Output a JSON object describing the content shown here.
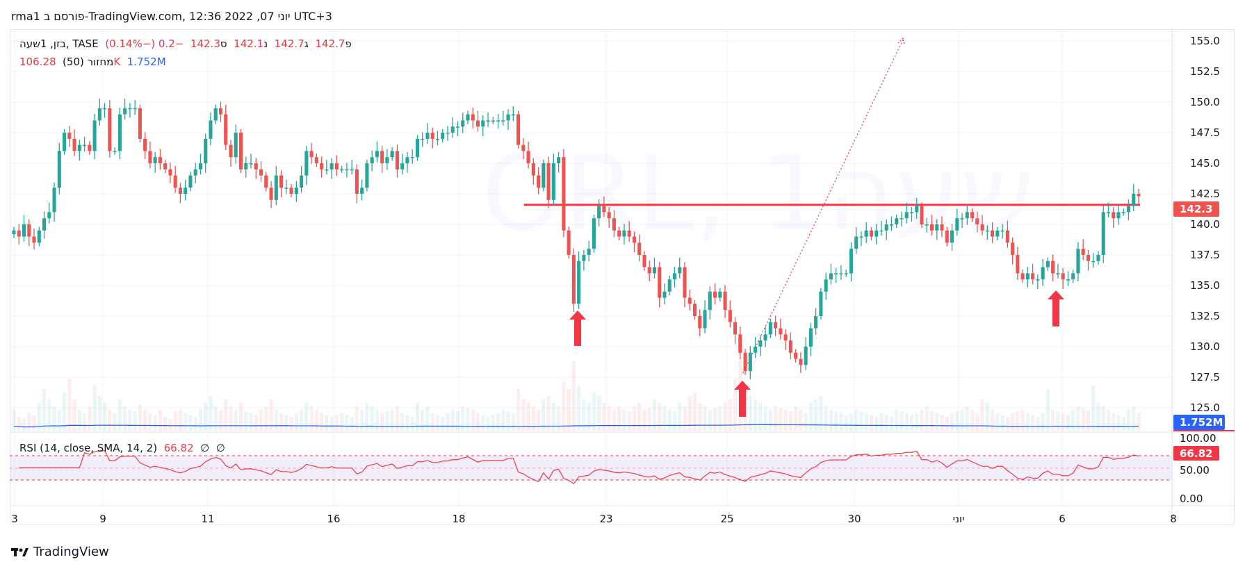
{
  "header": {
    "title": "rma1 פורסם ב-TradingView.com, 12:36 2022 ,07 יוני UTC+3"
  },
  "legend": {
    "symbol": "בזן, 1שעה, TASE",
    "open_label": "פ",
    "open": "142.7",
    "high_label": "ג",
    "high": "142.7",
    "low_label": "נ",
    "low": "142.1",
    "close_label": "ס",
    "close": "142.3",
    "change": "−0.2 (−0.14%)",
    "volume_label": "מחזור (50)",
    "volume": "106.28K",
    "volume_ma": "1.752M"
  },
  "rsi": {
    "label": "RSI (14, close, SMA, 14, 2)",
    "value": "66.82",
    "extra1": "∅",
    "extra2": "∅"
  },
  "watermark": "ORL, 1שעה",
  "logo": {
    "text": "TradingView"
  },
  "colors": {
    "up": "#26a69a",
    "down": "#ef5350",
    "annotation": "#f23645",
    "volume_ma": "#2962ff",
    "rsi": "#f23645"
  },
  "chart_data": {
    "type": "candlestick",
    "y_ticks": [
      "155.0",
      "152.5",
      "150.0",
      "147.5",
      "145.0",
      "142.5",
      "140.0",
      "137.5",
      "135.0",
      "132.5",
      "130.0",
      "127.5",
      "125.0"
    ],
    "y_tick_values": [
      155,
      152.5,
      150,
      147.5,
      145,
      142.5,
      140,
      137.5,
      135,
      132.5,
      130,
      127.5,
      125
    ],
    "ylim": [
      125,
      155
    ],
    "x_ticks": [
      "3",
      "9",
      "11",
      "16",
      "18",
      "23",
      "25",
      "30",
      "יוני",
      "6",
      "8"
    ],
    "last_price_label": "142.3",
    "volume_ma_label": "1.752M",
    "rsi_ticks": [
      "100.00",
      "50.00",
      "0.00"
    ],
    "rsi_value_label": "66.82",
    "resistance_level": 141.6,
    "closes": [
      139.5,
      139,
      140,
      139,
      138.5,
      139.5,
      140.5,
      141,
      143,
      146,
      147.5,
      147,
      146,
      146.5,
      146.5,
      146,
      148.5,
      149.5,
      149.5,
      146,
      146,
      149,
      149.5,
      149.5,
      149.5,
      147,
      146,
      145,
      145.5,
      145,
      144.5,
      144,
      143,
      142.5,
      143,
      144,
      144.5,
      145,
      147,
      148.5,
      149.5,
      149,
      146.5,
      145.5,
      147.5,
      144.5,
      145,
      145,
      144.5,
      144,
      143,
      142,
      144,
      143,
      143,
      142.5,
      143,
      144,
      146,
      145.5,
      145,
      144.5,
      144.5,
      145,
      144.5,
      144.5,
      144.5,
      144.5,
      142.5,
      143,
      145,
      145.5,
      146,
      145,
      145.5,
      146,
      144.5,
      145,
      145.5,
      145.5,
      147,
      147,
      147.5,
      147,
      147,
      147.5,
      147.5,
      148,
      148,
      148.5,
      149,
      148.5,
      148,
      148.5,
      148.5,
      148.5,
      148.5,
      148.5,
      149,
      149,
      146.5,
      146,
      145,
      144,
      143,
      145,
      142,
      145,
      145.5,
      139.5,
      137.5,
      133.5,
      137,
      137.5,
      138,
      140.5,
      141.5,
      141,
      140.5,
      139.5,
      139,
      139.5,
      139,
      138.5,
      137.5,
      136.5,
      136,
      136.5,
      134,
      134.5,
      135.5,
      136,
      136.5,
      134,
      133.5,
      132.5,
      131.5,
      133,
      134.5,
      134,
      134.5,
      133,
      132,
      131,
      129.5,
      128,
      129.5,
      130,
      130.5,
      131,
      132,
      131.5,
      131,
      130.5,
      129.5,
      129,
      128.5,
      130,
      131.5,
      132.5,
      134.5,
      135.5,
      136,
      136,
      136,
      136,
      138,
      139,
      139,
      139.5,
      139,
      139.5,
      139.5,
      140,
      140,
      140.5,
      140.5,
      141,
      141,
      141.5,
      140,
      140,
      139.5,
      140,
      139.5,
      138.5,
      139.5,
      140.5,
      140.5,
      141,
      140.5,
      140,
      139.5,
      139.5,
      139,
      139.5,
      139.5,
      138.5,
      137.5,
      136,
      135.5,
      136,
      135.5,
      135.5,
      136.5,
      137,
      136,
      136,
      135.5,
      135.5,
      136,
      138,
      137.5,
      137,
      137,
      137.5,
      141,
      141,
      140.5,
      141,
      141,
      141.5,
      142.5,
      142.3
    ],
    "volume_k": [
      60,
      40,
      35,
      50,
      45,
      80,
      120,
      90,
      70,
      60,
      110,
      150,
      90,
      60,
      50,
      70,
      130,
      100,
      80,
      60,
      50,
      90,
      70,
      60,
      55,
      75,
      60,
      50,
      45,
      60,
      40,
      35,
      55,
      60,
      50,
      45,
      40,
      60,
      80,
      100,
      70,
      60,
      90,
      70,
      60,
      80,
      55,
      50,
      45,
      60,
      70,
      90,
      60,
      50,
      45,
      40,
      50,
      60,
      80,
      70,
      60,
      50,
      45,
      40,
      45,
      50,
      45,
      40,
      70,
      60,
      80,
      70,
      60,
      50,
      55,
      60,
      70,
      50,
      45,
      40,
      80,
      60,
      70,
      50,
      45,
      40,
      50,
      60,
      55,
      70,
      65,
      60,
      50,
      45,
      40,
      45,
      50,
      60,
      55,
      50,
      120,
      90,
      80,
      70,
      60,
      90,
      100,
      80,
      70,
      140,
      120,
      200,
      130,
      90,
      80,
      110,
      100,
      80,
      70,
      60,
      70,
      60,
      55,
      70,
      80,
      60,
      65,
      90,
      80,
      70,
      60,
      55,
      80,
      70,
      100,
      110,
      80,
      70,
      60,
      65,
      70,
      80,
      90,
      150,
      200,
      130,
      100,
      90,
      80,
      70,
      60,
      70,
      65,
      60,
      55,
      70,
      60,
      50,
      80,
      90,
      100,
      70,
      60,
      55,
      50,
      45,
      50,
      60,
      55,
      50,
      45,
      40,
      50,
      45,
      40,
      60,
      55,
      50,
      45,
      50,
      60,
      70,
      55,
      50,
      45,
      40,
      50,
      55,
      60,
      70,
      60,
      50,
      90,
      80,
      60,
      50,
      45,
      40,
      50,
      55,
      60,
      50,
      45,
      40,
      50,
      120,
      60,
      55,
      50,
      45,
      60,
      70,
      65,
      60,
      130,
      80,
      70,
      60,
      50,
      45,
      40,
      60,
      70,
      50,
      45,
      40,
      50,
      60,
      55,
      106
    ]
  }
}
